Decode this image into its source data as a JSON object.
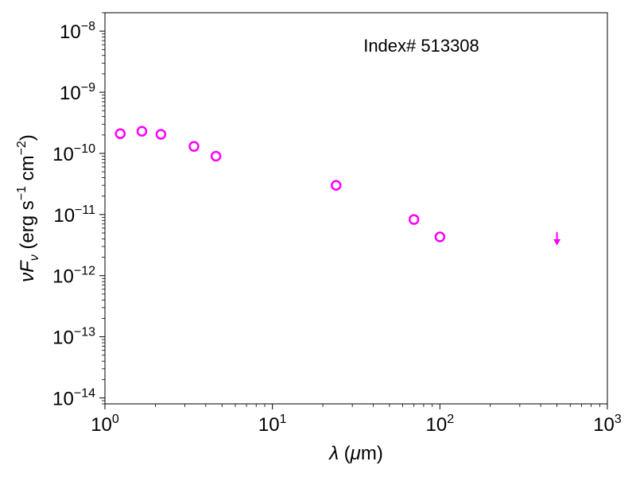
{
  "chart_data": {
    "type": "scatter",
    "title": "",
    "annotation": "Index# 513308",
    "xlabel": "λ (μm)",
    "ylabel": "νF_ν (erg s⁻¹ cm⁻²)",
    "xscale": "log",
    "yscale": "log",
    "xlim": [
      1,
      1000
    ],
    "ylim": [
      8e-15,
      2e-08
    ],
    "x_ticks": [
      {
        "value": 1,
        "base": "10",
        "exp": "0"
      },
      {
        "value": 10,
        "base": "10",
        "exp": "1"
      },
      {
        "value": 100,
        "base": "10",
        "exp": "2"
      },
      {
        "value": 1000,
        "base": "10",
        "exp": "3"
      }
    ],
    "y_ticks": [
      {
        "value": 1e-14,
        "base": "10",
        "exp": "−14"
      },
      {
        "value": 1e-13,
        "base": "10",
        "exp": "−13"
      },
      {
        "value": 1e-12,
        "base": "10",
        "exp": "−12"
      },
      {
        "value": 1e-11,
        "base": "10",
        "exp": "−11"
      },
      {
        "value": 1e-10,
        "base": "10",
        "exp": "−10"
      },
      {
        "value": 1e-09,
        "base": "10",
        "exp": "−9"
      },
      {
        "value": 1e-08,
        "base": "10",
        "exp": "−8"
      }
    ],
    "grid": false,
    "marker_color": "#ff00ff",
    "points": [
      {
        "x": 1.235,
        "y": 2.1e-10
      },
      {
        "x": 1.662,
        "y": 2.3e-10
      },
      {
        "x": 2.159,
        "y": 2.05e-10
      },
      {
        "x": 3.4,
        "y": 1.3e-10
      },
      {
        "x": 4.6,
        "y": 9e-11
      },
      {
        "x": 24,
        "y": 3e-11
      },
      {
        "x": 70,
        "y": 8.3e-12
      },
      {
        "x": 100,
        "y": 4.3e-12
      }
    ],
    "upper_limits": [
      {
        "x": 500,
        "y": 3.3e-12
      }
    ]
  }
}
